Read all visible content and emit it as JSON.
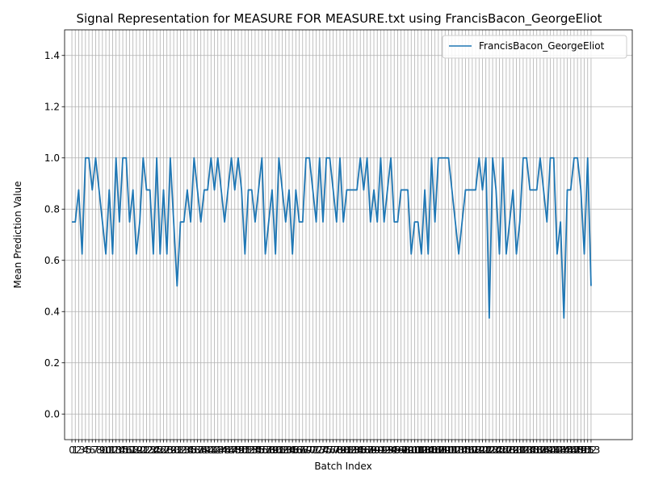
{
  "chart_data": {
    "type": "line",
    "title": "Signal Representation for MEASURE FOR MEASURE.txt using FrancisBacon_GeorgeEliot",
    "xlabel": "Batch Index",
    "ylabel": "Mean Prediction Value",
    "xlim": [
      -2.15,
      165.15
    ],
    "ylim": [
      -0.1,
      1.5
    ],
    "yticks": [
      0.0,
      0.2,
      0.4,
      0.6,
      0.8,
      1.0,
      1.2,
      1.4
    ],
    "ytick_labels": [
      "0.0",
      "0.2",
      "0.4",
      "0.6",
      "0.8",
      "1.0",
      "1.2",
      "1.4"
    ],
    "grid": true,
    "legend_position": "top-right",
    "series": [
      {
        "name": "FrancisBacon_GeorgeEliot",
        "color": "#1f77b4",
        "y": [
          0.75,
          0.75,
          0.875,
          0.625,
          1.0,
          1.0,
          0.875,
          1.0,
          0.875,
          0.75,
          0.625,
          0.875,
          0.625,
          1.0,
          0.75,
          1.0,
          1.0,
          0.75,
          0.875,
          0.625,
          0.75,
          1.0,
          0.875,
          0.875,
          0.625,
          1.0,
          0.625,
          0.875,
          0.625,
          1.0,
          0.75,
          0.5,
          0.75,
          0.75,
          0.875,
          0.75,
          1.0,
          0.875,
          0.75,
          0.875,
          0.875,
          1.0,
          0.875,
          1.0,
          0.875,
          0.75,
          0.875,
          1.0,
          0.875,
          1.0,
          0.875,
          0.625,
          0.875,
          0.875,
          0.75,
          0.875,
          1.0,
          0.625,
          0.75,
          0.875,
          0.625,
          1.0,
          0.875,
          0.75,
          0.875,
          0.625,
          0.875,
          0.75,
          0.75,
          1.0,
          1.0,
          0.875,
          0.75,
          1.0,
          0.75,
          1.0,
          1.0,
          0.875,
          0.75,
          1.0,
          0.75,
          0.875,
          0.875,
          0.875,
          0.875,
          1.0,
          0.875,
          1.0,
          0.75,
          0.875,
          0.75,
          1.0,
          0.75,
          0.875,
          1.0,
          0.75,
          0.75,
          0.875,
          0.875,
          0.875,
          0.625,
          0.75,
          0.75,
          0.625,
          0.875,
          0.625,
          1.0,
          0.75,
          1.0,
          1.0,
          1.0,
          1.0,
          0.875,
          0.75,
          0.625,
          0.75,
          0.875,
          0.875,
          0.875,
          0.875,
          1.0,
          0.875,
          1.0,
          0.375,
          1.0,
          0.875,
          0.625,
          1.0,
          0.625,
          0.75,
          0.875,
          0.625,
          0.75,
          1.0,
          1.0,
          0.875,
          0.875,
          0.875,
          1.0,
          0.875,
          0.75,
          1.0,
          1.0,
          0.625,
          0.75,
          0.375,
          0.875,
          0.875,
          1.0,
          1.0,
          0.875,
          0.625,
          1.0,
          0.5
        ]
      }
    ]
  }
}
